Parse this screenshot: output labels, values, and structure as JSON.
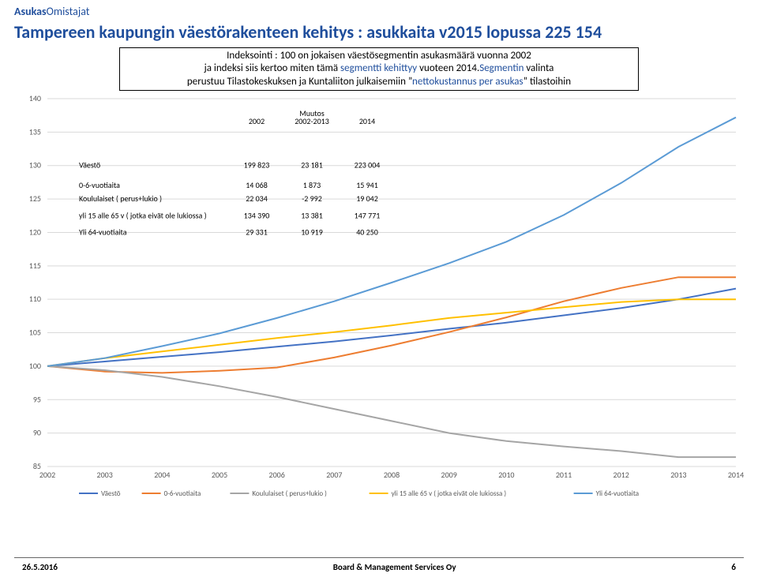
{
  "brand": {
    "part1": "Asukas",
    "part2": "Omistajat",
    "color": "#1f4e9c"
  },
  "title": {
    "pre": "Tampereen kaupungin väestörakenteen kehitys : ",
    "accent": "asukkaita v2015 lopussa 225 154",
    "pre_color": "#1f4e9c",
    "accent_color": "#1f4e9c"
  },
  "infobox": {
    "line1": "Indeksointi : 100 on jokaisen väestösegmentin asukasmäärä vuonna 2002",
    "line2": "ja indeksi siis kertoo miten tämä segmentti kehittyy vuoteen 2014.Segmentin valinta",
    "line3": "perustuu Tilastokeskuksen ja Kuntaliiton julkaisemiin \"nettokustannus per asukas\" tilastoihin",
    "black": "#000000",
    "blue": "#1f4e9c"
  },
  "chart": {
    "background_color": "#ffffff",
    "grid_color": "#d9d9d9",
    "axis_color": "#d9d9d9",
    "tick_label_color": "#595959",
    "ylim": [
      85,
      140
    ],
    "ytick_step": 5,
    "xlabels": [
      "2002",
      "2003",
      "2004",
      "2005",
      "2006",
      "2007",
      "2008",
      "2009",
      "2010",
      "2011",
      "2012",
      "2013",
      "2014"
    ],
    "series": [
      {
        "name": "Väestö",
        "color": "#4472c4",
        "values": [
          100,
          100.7,
          101.4,
          102.1,
          102.9,
          103.7,
          104.6,
          105.6,
          106.5,
          107.6,
          108.7,
          110.0,
          111.6
        ]
      },
      {
        "name": "0-6-vuotiaita",
        "color": "#ed7d31",
        "values": [
          100,
          99.2,
          99.0,
          99.3,
          99.8,
          101.3,
          103.1,
          105.1,
          107.3,
          109.7,
          111.7,
          113.3,
          113.3
        ]
      },
      {
        "name": "Koululaiset ( perus+lukio )",
        "color": "#a5a5a5",
        "values": [
          100,
          99.4,
          98.4,
          97.0,
          95.4,
          93.6,
          91.8,
          90.0,
          88.8,
          88.0,
          87.3,
          86.4,
          86.4
        ]
      },
      {
        "name": "yli 15 alle 65 v ( jotka eivät ole lukiossa )",
        "color": "#ffc000",
        "values": [
          100,
          101.2,
          102.2,
          103.2,
          104.2,
          105.1,
          106.1,
          107.2,
          108.0,
          108.8,
          109.6,
          110.0,
          110.0
        ]
      },
      {
        "name": "Yli 64-vuotiaita",
        "color": "#5b9bd5",
        "values": [
          100,
          101.2,
          103.0,
          104.9,
          107.2,
          109.7,
          112.5,
          115.4,
          118.6,
          122.6,
          127.4,
          132.8,
          137.2
        ]
      }
    ],
    "line_width": 2
  },
  "table": {
    "headers": {
      "c1": "2002",
      "c2": "Muutos\n2002-2013",
      "c3": "2014"
    },
    "rows": [
      {
        "label": "Väestö",
        "c1": "199 823",
        "c2": "23 181",
        "c3": "223 004"
      },
      {
        "label": "0-6-vuotiaita",
        "c1": "14 068",
        "c2": "1 873",
        "c3": "15 941"
      },
      {
        "label": "Koululaiset ( perus+lukio )",
        "c1": "22 034",
        "c2": "-2 992",
        "c3": "19 042"
      },
      {
        "label": "yli 15 alle 65 v ( jotka eivät ole lukiossa )",
        "c1": "134 390",
        "c2": "13 381",
        "c3": "147 771"
      },
      {
        "label": "Yli 64-vuotiaita",
        "c1": "29 331",
        "c2": "10 919",
        "c3": "40 250"
      }
    ]
  },
  "footer": {
    "date": "26.5.2016",
    "center": "Board & Management Services Oy",
    "page": "6"
  }
}
